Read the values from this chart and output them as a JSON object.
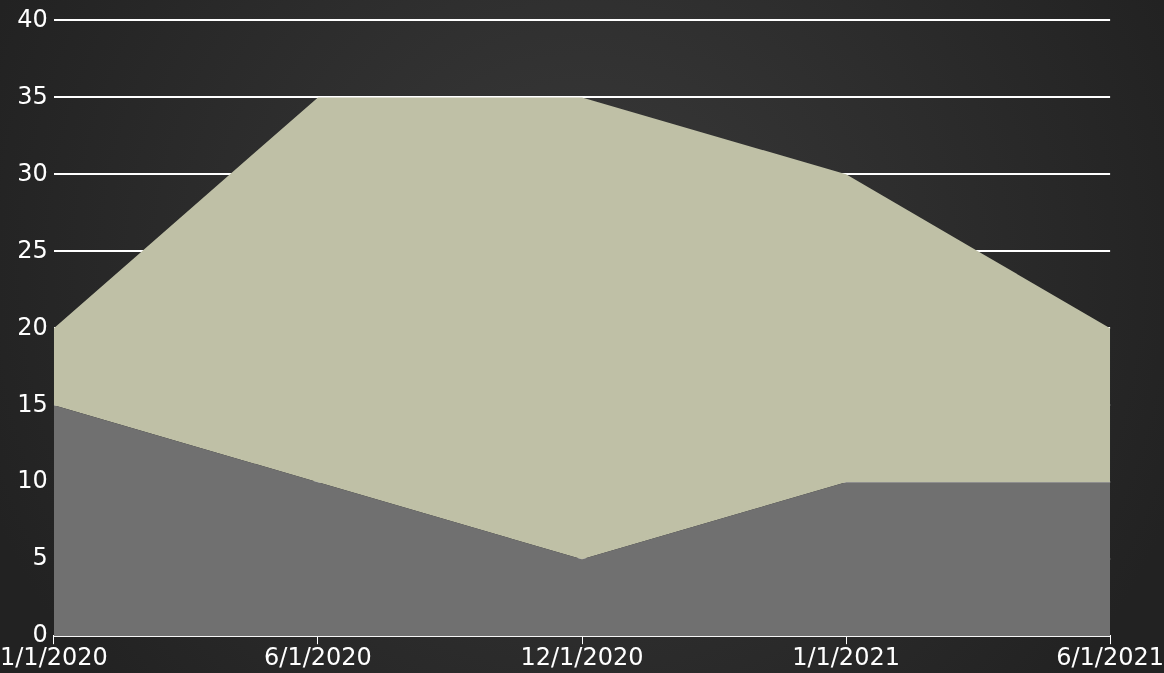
{
  "chart_data": {
    "type": "area",
    "categories": [
      "1/1/2020",
      "6/1/2020",
      "12/1/2020",
      "1/1/2021",
      "6/1/2021"
    ],
    "series": [
      {
        "color": "#707070",
        "values": [
          15,
          10,
          5,
          10,
          10
        ]
      },
      {
        "color": "#bfc0a6",
        "values": [
          5,
          25,
          30,
          20,
          10
        ]
      }
    ],
    "stacked": true,
    "ylim": [
      0,
      40
    ],
    "yticks": [
      0,
      5,
      10,
      15,
      20,
      25,
      30,
      35,
      40
    ],
    "grid": "y"
  }
}
